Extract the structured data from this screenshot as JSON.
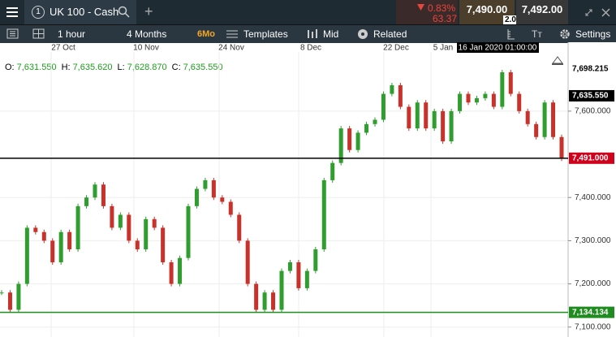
{
  "toolbar": {
    "tab_number": "1",
    "instrument": "UK 100 - Cash",
    "change_pct": "0.83%",
    "change": "63.37",
    "sell": "7,490.00",
    "spread": "2.00",
    "buy": "7,492.00"
  },
  "menu": {
    "interval": "1 hour",
    "range": "4 Months",
    "range_short": "6Mo",
    "templates": "Templates",
    "price_type": "Mid",
    "related": "Related",
    "text_size": "Tт",
    "settings": "Settings"
  },
  "chart_data": {
    "type": "candlestick",
    "ohlc": [
      {
        "label": "O:",
        "value": "7,631.550"
      },
      {
        "label": "H:",
        "value": "7,635.620"
      },
      {
        "label": "L:",
        "value": "7,628.870"
      },
      {
        "label": "C:",
        "value": "7,635.550"
      }
    ],
    "x_labels": [
      "27 Oct",
      "10 Nov",
      "24 Nov",
      "8 Dec",
      "22 Dec",
      "5 Jan"
    ],
    "crosshair": "16 Jan 2020 01:00:00",
    "values": [
      7180,
      7140,
      7200,
      7330,
      7320,
      7300,
      7250,
      7320,
      7280,
      7380,
      7400,
      7430,
      7380,
      7330,
      7360,
      7300,
      7280,
      7350,
      7330,
      7250,
      7200,
      7260,
      7380,
      7420,
      7440,
      7400,
      7390,
      7360,
      7300,
      7200,
      7140,
      7180,
      7140,
      7230,
      7250,
      7190,
      7230,
      7280,
      7440,
      7480,
      7560,
      7510,
      7550,
      7570,
      7580,
      7640,
      7660,
      7610,
      7560,
      7620,
      7560,
      7600,
      7530,
      7600,
      7640,
      7620,
      7630,
      7640,
      7610,
      7690,
      7640,
      7600,
      7570,
      7540,
      7620,
      7540,
      7490
    ],
    "up_color": "#2f9e2f",
    "down_color": "#c8322b",
    "ylim": [
      7077,
      7737
    ],
    "yticks": [
      {
        "value": 7100,
        "label": "7,100.000"
      },
      {
        "value": 7200,
        "label": "7,200.000"
      },
      {
        "value": 7300,
        "label": "7,300.000"
      },
      {
        "value": 7400,
        "label": "7,400.000"
      },
      {
        "value": 7600,
        "label": "7,600.000"
      }
    ],
    "grid": true,
    "price_markers": [
      {
        "value": 7698.215,
        "label": "7,698.215",
        "color": "#ffffff",
        "line": false
      },
      {
        "value": 7635.55,
        "label": "7,635.550",
        "color": "#000000",
        "line": false
      },
      {
        "value": 7491,
        "label": "7,491.000",
        "color": "#d0021b",
        "line": true
      },
      {
        "value": 7134.134,
        "label": "7,134.134",
        "color": "#1e8c1e",
        "line": true
      }
    ]
  }
}
